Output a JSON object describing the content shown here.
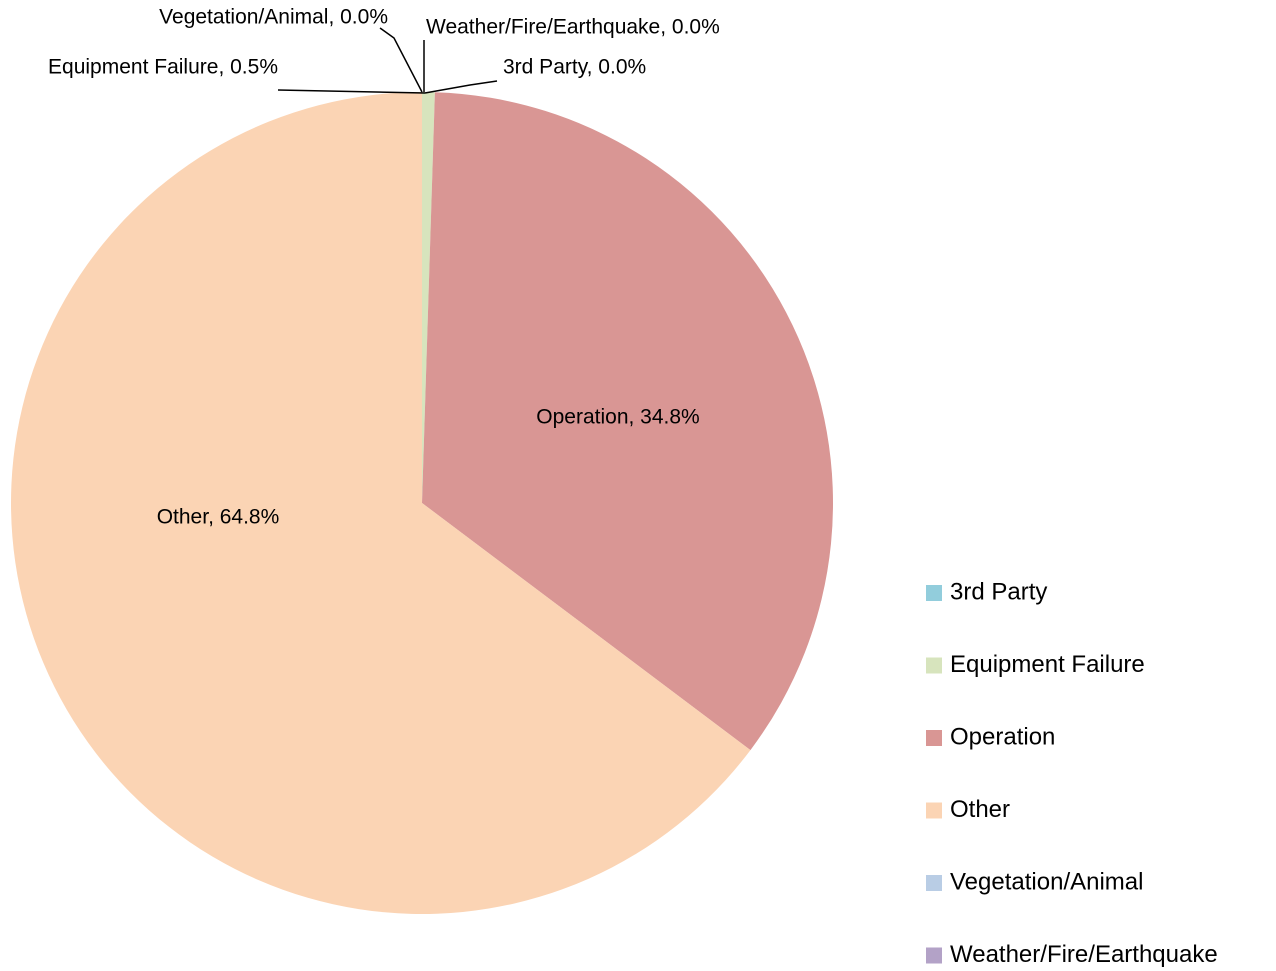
{
  "chart_data": {
    "type": "pie",
    "categories": [
      "3rd Party",
      "Equipment Failure",
      "Operation",
      "Other",
      "Vegetation/Animal",
      "Weather/Fire/Earthquake"
    ],
    "values": [
      0.0,
      0.5,
      34.8,
      64.8,
      0.0,
      0.0
    ],
    "value_labels": [
      "3rd Party, 0.0%",
      "Equipment Failure, 0.5%",
      "Operation, 34.8%",
      "Other, 64.8%",
      "Vegetation/Animal, 0.0%",
      "Weather/Fire/Earthquake, 0.0%"
    ],
    "colors": [
      "#92cddc",
      "#d7e4bd",
      "#d99694",
      "#fbd4b4",
      "#b9cde5",
      "#b3a2c7"
    ],
    "legend": "right"
  }
}
